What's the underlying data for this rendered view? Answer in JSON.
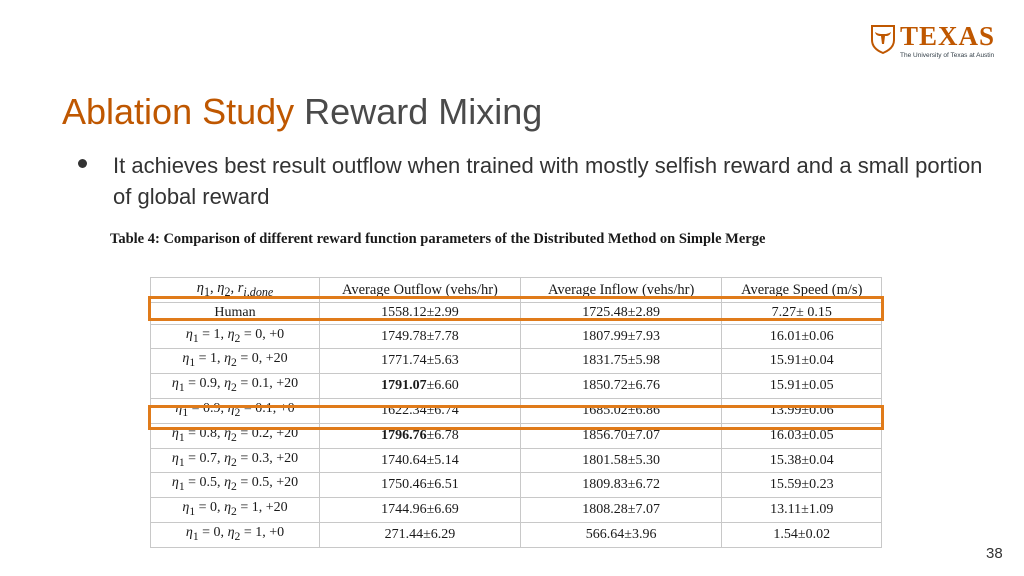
{
  "logo": {
    "word": "TEXAS",
    "subtitle": "The University of Texas at Austin",
    "color": "#bf5700",
    "icon": "longhorn-shield-icon"
  },
  "title": {
    "part1": "Ablation Study",
    "part2": "Reward Mixing",
    "color_accent": "#bf5700"
  },
  "bullets": [
    "It achieves best result outflow when trained with mostly selfish reward and a small portion of global reward"
  ],
  "table": {
    "caption": "Table 4: Comparison of different reward function parameters of the Distributed Method on Simple Merge",
    "columns": [
      "η1, η2, r_i,done",
      "Average Outflow (vehs/hr)",
      "Average Inflow (vehs/hr)",
      "Average Speed (m/s)"
    ],
    "rows": [
      {
        "cells": [
          "Human",
          "1558.12±2.99",
          "1725.48±2.89",
          "7.27± 0.15"
        ],
        "highlighted": true
      },
      {
        "cells": [
          "η1 = 1, η2 = 0, +0",
          "1749.78±7.78",
          "1807.99±7.93",
          "16.01±0.06"
        ]
      },
      {
        "cells": [
          "η1 = 1, η2 = 0, +20",
          "1771.74±5.63",
          "1831.75±5.98",
          "15.91±0.04"
        ]
      },
      {
        "cells": [
          "η1 = 0.9, η2 = 0.1, +20",
          "1791.07±6.60",
          "1850.72±6.76",
          "15.91±0.05"
        ],
        "bold_outflow": "1791.07"
      },
      {
        "cells": [
          "η1 = 0.9, η2 = 0.1, +0",
          "1622.34±6.74",
          "1685.02±6.86",
          "13.99±0.06"
        ]
      },
      {
        "cells": [
          "η1 = 0.8, η2 = 0.2, +20",
          "1796.76±6.78",
          "1856.70±7.07",
          "16.03±0.05"
        ],
        "bold_outflow": "1796.76",
        "highlighted": true
      },
      {
        "cells": [
          "η1 = 0.7, η2 = 0.3, +20",
          "1740.64±5.14",
          "1801.58±5.30",
          "15.38±0.04"
        ]
      },
      {
        "cells": [
          "η1 = 0.5, η2 = 0.5, +20",
          "1750.46±6.51",
          "1809.83±6.72",
          "15.59±0.23"
        ]
      },
      {
        "cells": [
          "η1 = 0, η2 = 1, +20",
          "1744.96±6.69",
          "1808.28±7.07",
          "13.11±1.09"
        ]
      },
      {
        "cells": [
          "η1 = 0, η2 = 1, +0",
          "271.44±6.29",
          "566.64±3.96",
          "1.54±0.02"
        ]
      }
    ]
  },
  "page_number": "38"
}
